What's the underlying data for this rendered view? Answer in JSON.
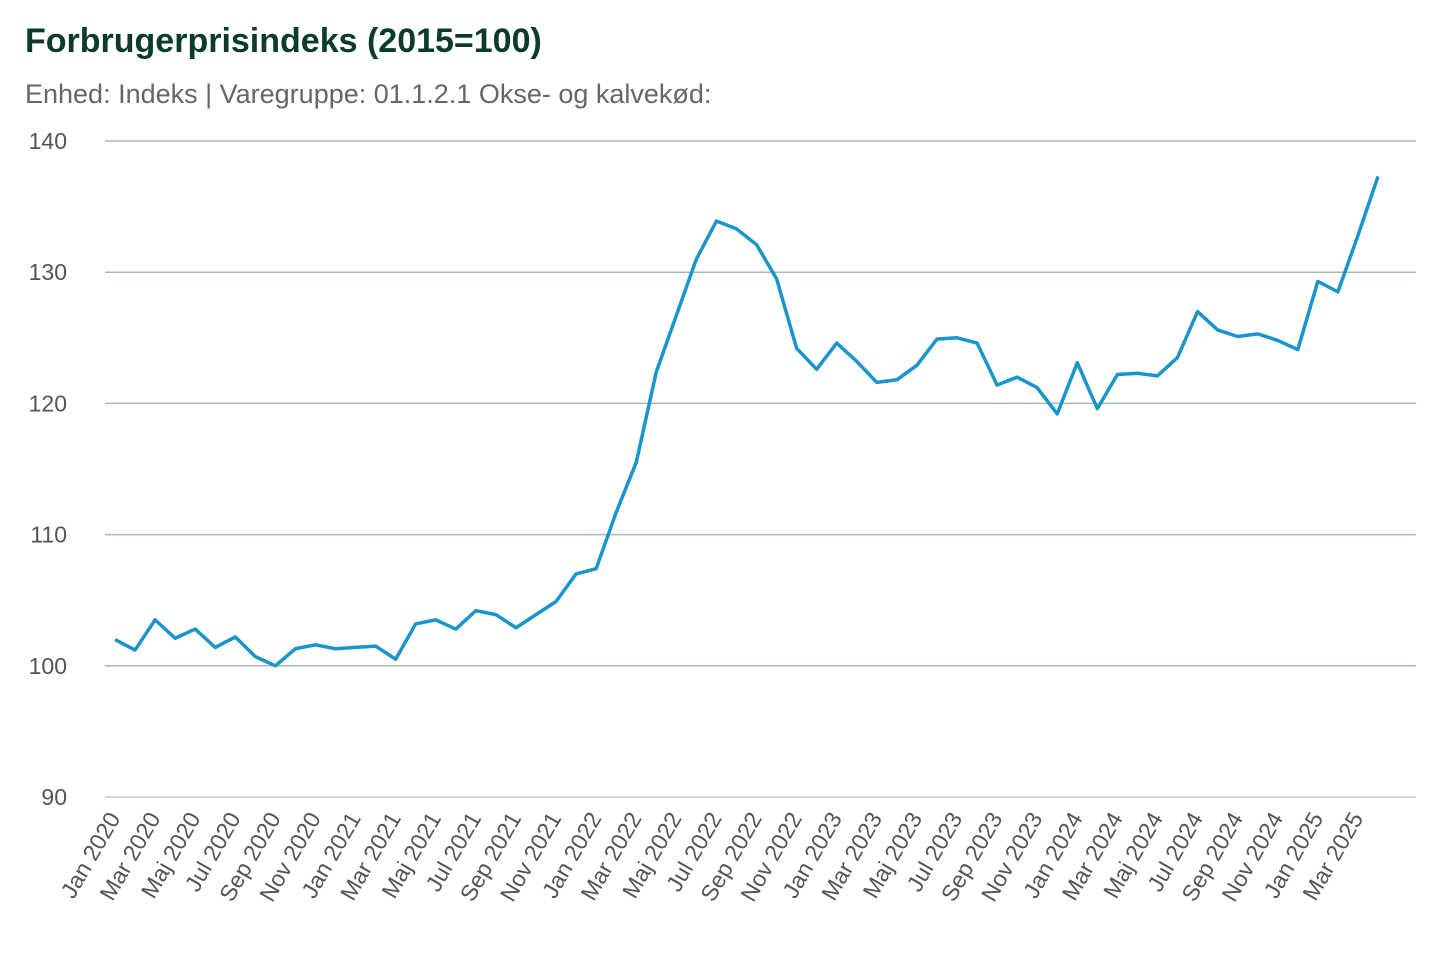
{
  "chart_data": {
    "type": "line",
    "title": "Forbrugerprisindeks (2015=100)",
    "subtitle": "Enhed: Indeks | Varegruppe: 01.1.2.1 Okse- og kalvekød:",
    "categories": [
      "Jan 2020",
      null,
      "Mar 2020",
      null,
      "Maj 2020",
      null,
      "Jul 2020",
      null,
      "Sep 2020",
      null,
      "Nov 2020",
      null,
      "Jan 2021",
      null,
      "Mar 2021",
      null,
      "Maj 2021",
      null,
      "Jul 2021",
      null,
      "Sep 2021",
      null,
      "Nov 2021",
      null,
      "Jan 2022",
      null,
      "Mar 2022",
      null,
      "Maj 2022",
      null,
      "Jul 2022",
      null,
      "Sep 2022",
      null,
      "Nov 2022",
      null,
      "Jan 2023",
      null,
      "Mar 2023",
      null,
      "Maj 2023",
      null,
      "Jul 2023",
      null,
      "Sep 2023",
      null,
      "Nov 2023",
      null,
      "Jan 2024",
      null,
      "Mar 2024",
      null,
      "Maj 2024",
      null,
      "Jul 2024",
      null,
      "Sep 2024",
      null,
      "Nov 2024",
      null,
      "Jan 2025",
      null,
      "Mar 2025",
      null
    ],
    "series": [
      {
        "color": "#1a95cc",
        "values": [
          102.0,
          101.2,
          103.5,
          102.1,
          102.8,
          101.4,
          102.2,
          100.7,
          100.0,
          101.3,
          101.6,
          101.3,
          101.4,
          101.5,
          100.5,
          103.2,
          103.5,
          102.8,
          104.2,
          103.9,
          102.9,
          103.9,
          104.9,
          107.0,
          107.4,
          111.7,
          115.5,
          122.4,
          126.7,
          131.0,
          133.9,
          133.3,
          132.1,
          129.5,
          124.2,
          122.6,
          124.6,
          123.2,
          121.6,
          121.8,
          122.9,
          124.9,
          125.0,
          124.6,
          121.4,
          122.0,
          121.2,
          119.2,
          123.1,
          119.6,
          122.2,
          122.3,
          122.1,
          123.5,
          127.0,
          125.6,
          125.1,
          125.3,
          124.8,
          124.1,
          129.3,
          128.5,
          132.8,
          137.3
        ]
      }
    ],
    "ylim": [
      90,
      140
    ],
    "yticks": [
      90,
      100,
      110,
      120,
      130,
      140
    ],
    "grid": true
  }
}
